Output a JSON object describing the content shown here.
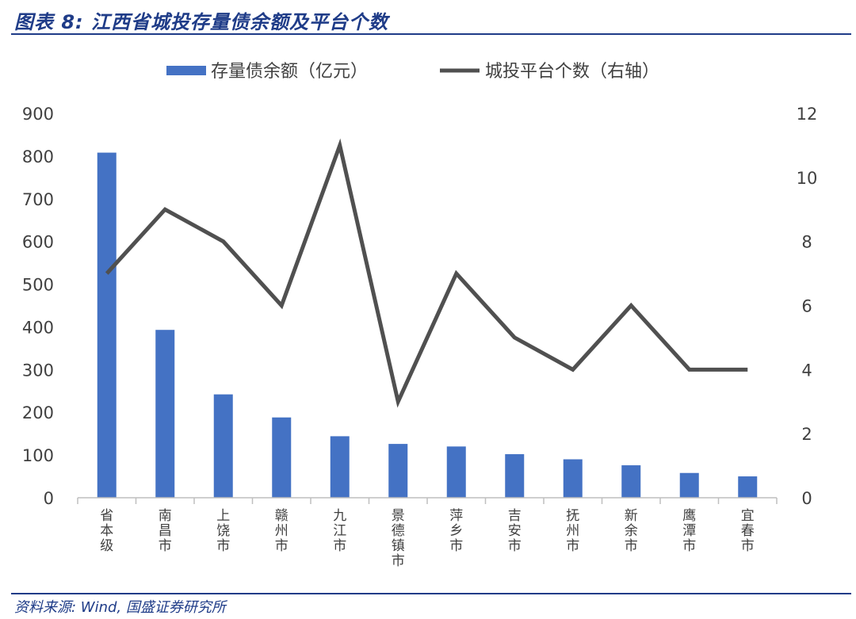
{
  "header": {
    "title": "图表 8:  江西省城投存量债余额及平台个数"
  },
  "footer": {
    "source": "资料来源: Wind, 国盛证券研究所"
  },
  "colors": {
    "bar": "#4472c4",
    "line": "#505050",
    "accent": "#1f3c88"
  },
  "chart_data": {
    "type": "bar",
    "title": "",
    "categories": [
      "省本级",
      "南昌市",
      "上饶市",
      "赣州市",
      "九江市",
      "景德镇市",
      "萍乡市",
      "吉安市",
      "抚州市",
      "新余市",
      "鹰潭市",
      "宜春市"
    ],
    "series": [
      {
        "name": "存量债余额（亿元）",
        "type": "bar",
        "axis": "left",
        "values": [
          808,
          393,
          242,
          188,
          144,
          126,
          120,
          102,
          90,
          76,
          58,
          50
        ]
      },
      {
        "name": "城投平台个数（右轴）",
        "type": "line",
        "axis": "right",
        "values": [
          7,
          9,
          8,
          6,
          11,
          3,
          7,
          5,
          4,
          6,
          4,
          4
        ]
      }
    ],
    "y_left": {
      "min": 0,
      "max": 900,
      "ticks": [
        0,
        100,
        200,
        300,
        400,
        500,
        600,
        700,
        800,
        900
      ]
    },
    "y_right": {
      "min": 0,
      "max": 12,
      "ticks": [
        0,
        2,
        4,
        6,
        8,
        10,
        12
      ]
    },
    "grid": false,
    "legend": "top"
  }
}
